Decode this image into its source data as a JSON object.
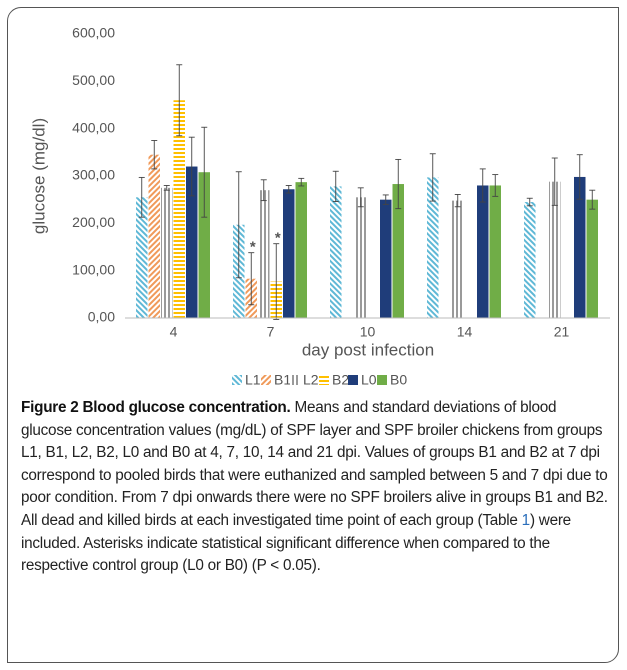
{
  "chart_data": {
    "type": "bar",
    "y_label": "glucose (mg/dl)",
    "x_label": "day post infection",
    "categories": [
      "4",
      "7",
      "10",
      "14",
      "21"
    ],
    "ylim": [
      0,
      600
    ],
    "yticks": [
      {
        "value": 0,
        "label": "0,00"
      },
      {
        "value": 100,
        "label": "100,00"
      },
      {
        "value": 200,
        "label": "200,00"
      },
      {
        "value": 300,
        "label": "300,00"
      },
      {
        "value": 400,
        "label": "400,00"
      },
      {
        "value": 500,
        "label": "500,00"
      },
      {
        "value": 600,
        "label": "600,00"
      }
    ],
    "grid": false,
    "legend": "bottom",
    "series": [
      {
        "name": "L1",
        "color": "#5fb8d6",
        "pattern": "diagonal-down",
        "values": [
          255,
          197,
          278,
          297,
          245
        ],
        "errors": [
          42,
          112,
          32,
          50,
          8
        ]
      },
      {
        "name": "B1",
        "color": "#f09a5a",
        "pattern": "diagonal-up",
        "values": [
          345,
          83,
          null,
          null,
          null
        ],
        "errors": [
          30,
          55,
          null,
          null,
          null
        ]
      },
      {
        "name": "L2",
        "color": "#9a9a9a",
        "pattern": "vertical",
        "values": [
          275,
          270,
          255,
          248,
          288
        ],
        "errors": [
          5,
          22,
          20,
          13,
          50
        ]
      },
      {
        "name": "B2",
        "color": "#ffc000",
        "pattern": "horizontal",
        "values": [
          460,
          77,
          null,
          null,
          null
        ],
        "errors": [
          75,
          80,
          null,
          null,
          null
        ]
      },
      {
        "name": "L0",
        "color": "#1f3d7a",
        "pattern": "solid",
        "values": [
          320,
          272,
          250,
          280,
          298
        ],
        "errors": [
          62,
          8,
          10,
          35,
          47
        ]
      },
      {
        "name": "B0",
        "color": "#70ad47",
        "pattern": "solid",
        "values": [
          308,
          287,
          283,
          280,
          250
        ],
        "errors": [
          95,
          8,
          52,
          23,
          20
        ]
      }
    ],
    "annotations": [
      {
        "text": "*",
        "category": "7",
        "series": "B1"
      },
      {
        "text": "*",
        "category": "7",
        "series": "B2"
      }
    ]
  },
  "caption": {
    "label": "Figure 2  Blood glucose concentration.",
    "text_before_link": " Means and standard deviations of blood glucose concentration values (mg/dL) of SPF layer and SPF broiler chickens from groups L1, B1, L2, B2, L0 and B0 at 4, 7, 10, 14 and 21 dpi. Values of groups B1 and B2 at 7 dpi correspond to pooled birds that were euthanized and sampled between 5 and 7 dpi due to poor condition. From 7 dpi onwards there were no SPF broilers alive in groups B1 and B2. All dead and killed birds at each investigated time point of each group (Table ",
    "link": "1",
    "text_after_link": ") were included. Asterisks indicate statistical significant difference when compared to the respective control group (L0 or B0) (P < 0.05)."
  }
}
